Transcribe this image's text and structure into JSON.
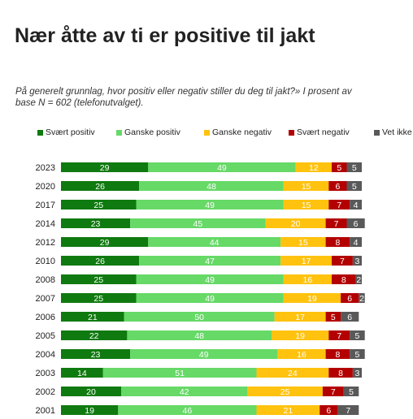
{
  "title": "Nær åtte av ti er positive til jakt",
  "subtitle": "På generelt grunnlag, hvor positiv eller negativ stiller du deg til jakt?» I prosent av base N = 602 (telefonutvalget).",
  "colors": {
    "svaert_positiv": "#0f7a0f",
    "ganske_positiv": "#66d966",
    "ganske_negativ": "#ffc20e",
    "svaert_negativ": "#b30000",
    "vet_ikke": "#595959"
  },
  "chart_data": {
    "type": "bar",
    "orientation": "horizontal",
    "stacked": true,
    "title": "Nær åtte av ti er positive til jakt",
    "categories": [
      "2023",
      "2020",
      "2017",
      "2014",
      "2012",
      "2010",
      "2008",
      "2007",
      "2006",
      "2005",
      "2004",
      "2003",
      "2002",
      "2001"
    ],
    "series": [
      {
        "name": "Svært positiv",
        "color": "#0f7a0f",
        "values": [
          29,
          26,
          25,
          23,
          29,
          26,
          25,
          25,
          21,
          22,
          23,
          14,
          20,
          19
        ]
      },
      {
        "name": "Ganske positiv",
        "color": "#66d966",
        "values": [
          49,
          48,
          49,
          45,
          44,
          47,
          49,
          49,
          50,
          48,
          49,
          51,
          42,
          46
        ]
      },
      {
        "name": "Ganske negativ",
        "color": "#ffc20e",
        "values": [
          12,
          15,
          15,
          20,
          15,
          17,
          16,
          19,
          17,
          19,
          16,
          24,
          25,
          21
        ]
      },
      {
        "name": "Svært negativ",
        "color": "#b30000",
        "values": [
          5,
          6,
          7,
          7,
          8,
          7,
          8,
          6,
          5,
          7,
          8,
          8,
          7,
          6
        ]
      },
      {
        "name": "Vet ikke",
        "color": "#595959",
        "values": [
          5,
          5,
          4,
          6,
          4,
          3,
          2,
          2,
          6,
          5,
          5,
          3,
          5,
          7
        ]
      }
    ],
    "xlim": [
      0,
      100
    ],
    "legend_position": "top",
    "grid": false,
    "data_labels": true
  }
}
